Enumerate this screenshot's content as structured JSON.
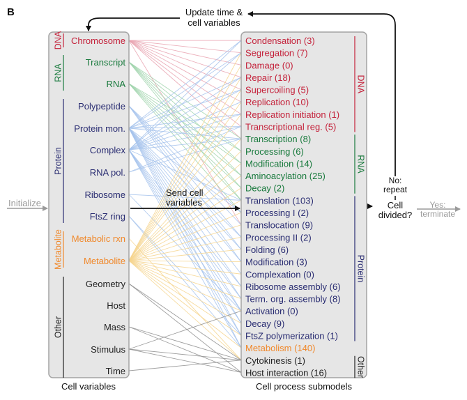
{
  "panel_letter": "B",
  "colors": {
    "DNA": "#c4213a",
    "RNA": "#197a3d",
    "Protein": "#2a2d72",
    "Metabolite": "#f0882a",
    "Other": "#222222",
    "box_fill": "#e6e6e6",
    "box_stroke": "#a4a4a4",
    "arrow_grey": "#9a9a9a",
    "line_DNA": "#e9a3b0",
    "line_RNA": "#9fd3ac",
    "line_Protein": "#a6c3ec",
    "line_Metabolite": "#f6d58e",
    "line_Other": "#8e8e8e"
  },
  "variables": {
    "caption": "Cell variables",
    "groups": [
      {
        "name": "DNA",
        "label": "DNA",
        "items": [
          "Chromosome"
        ]
      },
      {
        "name": "RNA",
        "label": "RNA",
        "items": [
          "Transcript",
          "RNA"
        ]
      },
      {
        "name": "Protein",
        "label": "Protein",
        "items": [
          "Polypeptide",
          "Protein mon.",
          "Complex",
          "RNA pol.",
          "Ribosome",
          "FtsZ ring"
        ]
      },
      {
        "name": "Metabolite",
        "label": "Metabolite",
        "items": [
          "Metabolic rxn",
          "Metabolite"
        ]
      },
      {
        "name": "Other",
        "label": "Other",
        "items": [
          "Geometry",
          "Host",
          "Mass",
          "Stimulus",
          "Time"
        ]
      }
    ]
  },
  "processes": {
    "caption": "Cell process submodels",
    "groups": [
      {
        "name": "DNA",
        "label": "DNA",
        "items": [
          "Condensation (3)",
          "Segregation (7)",
          "Damage (0)",
          "Repair (18)",
          "Supercoiling (5)",
          "Replication (10)",
          "Replication initiation (1)",
          "Transcriptional reg. (5)"
        ]
      },
      {
        "name": "RNA",
        "label": "RNA",
        "items": [
          "Transcription (8)",
          "Processing (6)",
          "Modification (14)",
          "Aminoacylation (25)",
          "Decay (2)"
        ]
      },
      {
        "name": "Protein",
        "label": "Protein",
        "items": [
          "Translation (103)",
          "Processing I (2)",
          "Translocation (9)",
          "Processing II (2)",
          "Folding (6)",
          "Modification (3)",
          "Complexation (0)",
          "Ribosome assembly (6)",
          "Term. org. assembly (8)",
          "Activation (0)",
          "Decay (9)",
          "FtsZ polymerization (1)"
        ]
      },
      {
        "name": "Metabolite",
        "label": "",
        "items": [
          "Metabolism (140)"
        ]
      },
      {
        "name": "Other",
        "label": "Other",
        "items": [
          "Cytokinesis (1)",
          "Host interaction (16)"
        ]
      }
    ]
  },
  "flow": {
    "initialize": "Initialize",
    "send_line1": "Send cell",
    "send_line2": "variables",
    "update_line1": "Update time &",
    "update_line2": "cell variables",
    "decision_line1": "Cell",
    "decision_line2": "divided?",
    "no_line1": "No:",
    "no_line2": "repeat",
    "yes_line1": "Yes:",
    "yes_line2": "terminate"
  }
}
